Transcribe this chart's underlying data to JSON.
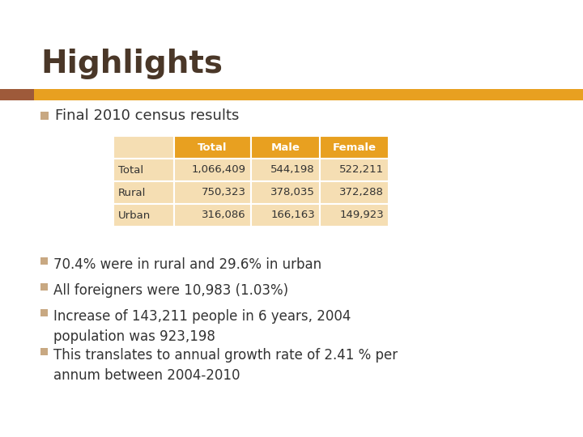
{
  "title": "Highlights",
  "title_color": "#4a3728",
  "accent_bar_left_color": "#9e5a3a",
  "accent_bar_right_color": "#e8a020",
  "subtitle": "Final 2010 census results",
  "table_headers": [
    "",
    "Total",
    "Male",
    "Female"
  ],
  "table_rows": [
    [
      "Total",
      "1,066,409",
      "544,198",
      "522,211"
    ],
    [
      "Rural",
      "750,323",
      "378,035",
      "372,288"
    ],
    [
      "Urban",
      "316,086",
      "166,163",
      "149,923"
    ]
  ],
  "table_header_bg": "#e8a020",
  "table_header_text_color": "#ffffff",
  "table_row_bg": "#f5deb3",
  "table_row_text_color": "#333333",
  "bullet_square_color": "#c8a882",
  "bullet_text_color": "#333333",
  "bullet_points": [
    "70.4% were in rural and 29.6% in urban",
    "All foreigners were 10,983 (1.03%)",
    "Increase of 143,211 people in 6 years, 2004\npopulation was 923,198",
    "This translates to annual growth rate of 2.41 % per\nannum between 2004-2010"
  ],
  "background_color": "#ffffff"
}
